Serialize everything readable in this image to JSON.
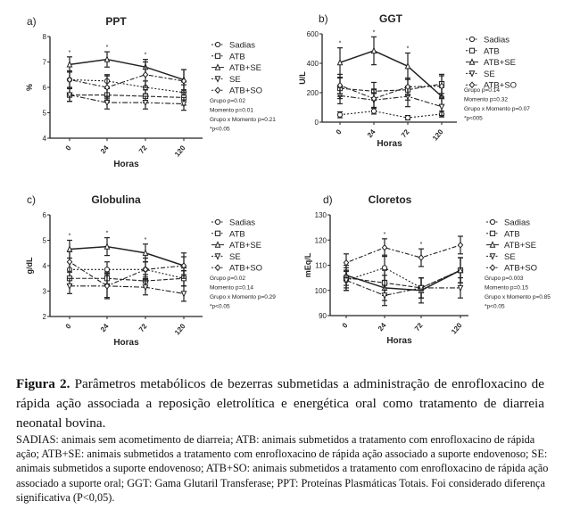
{
  "chart_data": [
    {
      "type": "line",
      "panel": "a)",
      "title": "PPT",
      "xlabel": "Horas",
      "ylabel": "%",
      "categories": [
        "0",
        "24",
        "72",
        "120"
      ],
      "ylim": [
        4,
        8
      ],
      "yticks": [
        4,
        5,
        6,
        7,
        8
      ],
      "series": [
        {
          "name": "Sadias",
          "values": [
            6.3,
            6.25,
            6.0,
            5.8
          ],
          "error": [
            0.3,
            0.25,
            0.25,
            0.3
          ]
        },
        {
          "name": "ATB",
          "values": [
            5.7,
            5.7,
            5.65,
            5.6
          ],
          "error": [
            0.25,
            0.25,
            0.25,
            0.3
          ]
        },
        {
          "name": "ATB+SE",
          "values": [
            6.9,
            7.1,
            6.8,
            6.3
          ],
          "error": [
            0.3,
            0.3,
            0.3,
            0.4
          ]
        },
        {
          "name": "SE",
          "values": [
            5.7,
            5.4,
            5.4,
            5.35
          ],
          "error": [
            0.25,
            0.25,
            0.25,
            0.25
          ]
        },
        {
          "name": "ATB+SO",
          "values": [
            6.3,
            6.0,
            6.5,
            6.25
          ],
          "error": [
            0.35,
            0.45,
            0.5,
            0.45
          ]
        }
      ],
      "significance_marks": [
        "*",
        "*",
        "*",
        ""
      ],
      "stats": [
        "Grupo p=0.02",
        "Momento p=0.01",
        "Grupo x Momento p=0.21",
        "*p<0.05"
      ]
    },
    {
      "type": "line",
      "panel": "b)",
      "title": "GGT",
      "xlabel": "Horas",
      "ylabel": "U/L",
      "categories": [
        "0",
        "24",
        "72",
        "120"
      ],
      "ylim": [
        0,
        600
      ],
      "yticks": [
        0,
        200,
        400,
        600
      ],
      "series": [
        {
          "name": "Sadias",
          "values": [
            50,
            75,
            30,
            55
          ],
          "error": [
            20,
            20,
            15,
            20
          ]
        },
        {
          "name": "ATB",
          "values": [
            230,
            210,
            220,
            260
          ],
          "error": [
            70,
            60,
            70,
            65
          ]
        },
        {
          "name": "ATB+SE",
          "values": [
            405,
            485,
            380,
            175
          ],
          "error": [
            100,
            95,
            90,
            60
          ]
        },
        {
          "name": "SE",
          "values": [
            180,
            150,
            175,
            105
          ],
          "error": [
            55,
            50,
            70,
            60
          ]
        },
        {
          "name": "ATB+SO",
          "values": [
            250,
            160,
            240,
            245
          ],
          "error": [
            75,
            60,
            60,
            70
          ]
        }
      ],
      "significance_marks": [
        "*",
        "*",
        "*",
        ""
      ],
      "stats": [
        "Grupo p=0.14",
        "Momento p=0.32",
        "Grupo x Momento p=0.07",
        "*p<005"
      ]
    },
    {
      "type": "line",
      "panel": "c)",
      "title": "Globulina",
      "xlabel": "Horas",
      "ylabel": "g/dL",
      "categories": [
        "0",
        "24",
        "72",
        "120"
      ],
      "ylim": [
        2,
        6
      ],
      "yticks": [
        2,
        3,
        4,
        5,
        6
      ],
      "series": [
        {
          "name": "Sadias",
          "values": [
            3.85,
            3.85,
            3.85,
            3.5
          ],
          "error": [
            0.3,
            0.3,
            0.3,
            0.3
          ]
        },
        {
          "name": "ATB",
          "values": [
            3.5,
            3.5,
            3.4,
            3.5
          ],
          "error": [
            0.25,
            0.25,
            0.25,
            0.3
          ]
        },
        {
          "name": "ATB+SE",
          "values": [
            4.65,
            4.75,
            4.5,
            4.0
          ],
          "error": [
            0.35,
            0.35,
            0.35,
            0.5
          ]
        },
        {
          "name": "SE",
          "values": [
            3.2,
            3.2,
            3.15,
            2.9
          ],
          "error": [
            0.3,
            0.5,
            0.3,
            0.3
          ]
        },
        {
          "name": "ATB+SO",
          "values": [
            4.15,
            3.2,
            3.85,
            4.0
          ],
          "error": [
            0.4,
            0.45,
            0.45,
            0.35
          ]
        }
      ],
      "significance_marks": [
        "*",
        "*",
        "*",
        ""
      ],
      "stats": [
        "Grupo p=0.02",
        "Momento p=0.14",
        "Grupo x Momento p=0.29",
        "*p<0.05"
      ]
    },
    {
      "type": "line",
      "panel": "d)",
      "title": "Cloretos",
      "xlabel": "Horas",
      "ylabel": "mEq/L",
      "categories": [
        "0",
        "24",
        "72",
        "120"
      ],
      "ylim": [
        90,
        130
      ],
      "yticks": [
        90,
        100,
        110,
        120,
        130
      ],
      "series": [
        {
          "name": "Sadias",
          "values": [
            104,
            109,
            101,
            108
          ],
          "error": [
            4,
            5,
            4,
            5
          ]
        },
        {
          "name": "ATB",
          "values": [
            105,
            103,
            101,
            108
          ],
          "error": [
            4,
            5,
            4,
            5
          ]
        },
        {
          "name": "ATB+SE",
          "values": [
            106,
            101,
            100,
            108
          ],
          "error": [
            4,
            5,
            5,
            5
          ]
        },
        {
          "name": "SE",
          "values": [
            104,
            98,
            101,
            101
          ],
          "error": [
            4,
            4,
            4,
            4
          ]
        },
        {
          "name": "ATB+SO",
          "values": [
            111,
            117,
            113,
            118
          ],
          "error": [
            3.5,
            3.5,
            3.5,
            3.5
          ]
        }
      ],
      "significance_marks": [
        "",
        "*",
        "*",
        ""
      ],
      "stats": [
        "Grupo p=0.003",
        "Momento p=0.15",
        "Grupo x Momento p=0.85",
        "*p<0.05"
      ]
    }
  ],
  "caption": {
    "label": "Figura 2.",
    "title": "Parâmetros metabólicos de bezerras submetidas a administração de enrofloxacino de rápida ação associada a reposição eletrolítica e energética oral como tratamento de diarreia neonatal bovina.",
    "notes": "SADIAS: animais sem acometimento de diarreia; ATB: animais submetidos a tratamento com enrofloxacino de rápida ação; ATB+SE: animais submetidos a tratamento com enrofloxacino de rápida ação associado a suporte endovenoso; SE: animais submetidos a suporte endovenoso; ATB+SO: animais submetidos a tratamento com enrofloxacino de rápida ação associado a suporte oral; GGT: Gama Glutaril Transferase; PPT: Proteínas Plasmáticas Totais. Foi considerado diferença significativa (P<0,05)."
  },
  "colors": {
    "ink": "#222222"
  }
}
